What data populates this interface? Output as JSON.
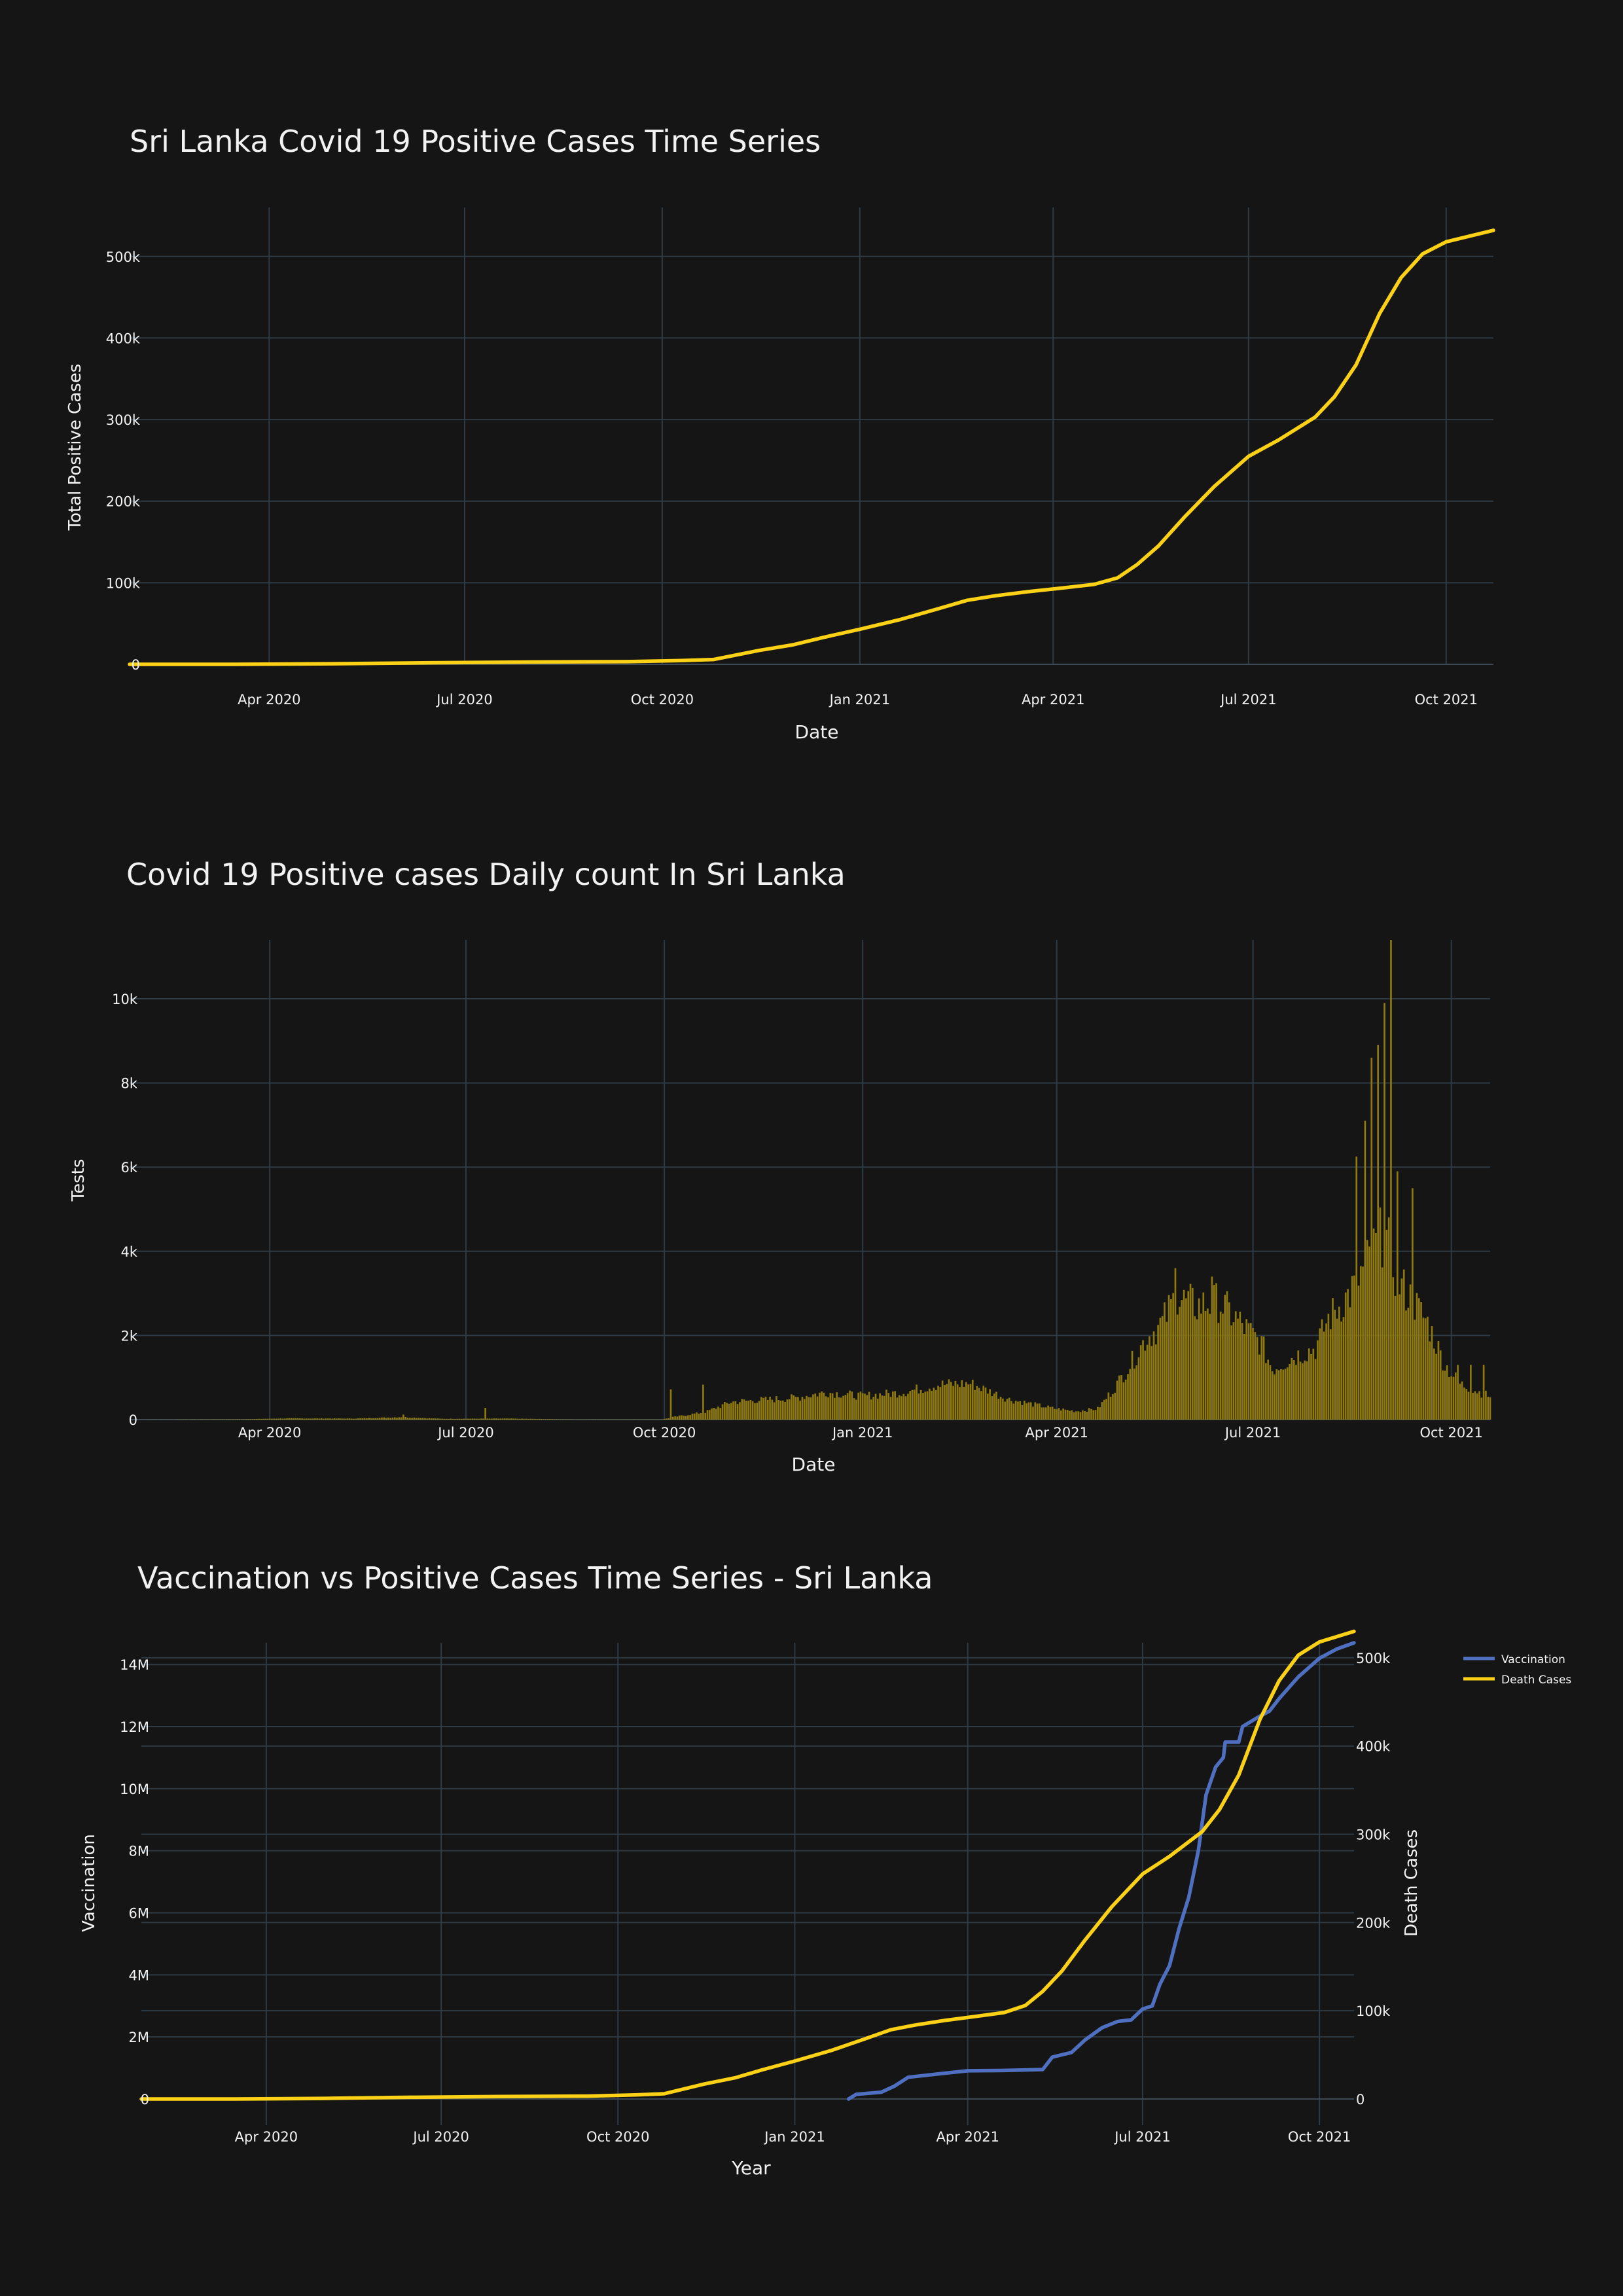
{
  "theme": {
    "background": "#151515",
    "grid": "#2e3a44",
    "text": "#f2f2f2",
    "cases_color": "#fcd116",
    "bar_color": "#8f7a0b",
    "vaccination_color": "#4f6fc0"
  },
  "chart_data": [
    {
      "type": "line",
      "title": "Sri Lanka Covid 19 Positive Cases Time Series",
      "xlabel": "Date",
      "ylabel": "Total Positive Cases",
      "x_range": [
        "2020-01-27",
        "2021-10-23"
      ],
      "ylim": [
        -12000,
        560000
      ],
      "x_ticks": [
        {
          "date": "2020-04-01",
          "label": "Apr 2020"
        },
        {
          "date": "2020-07-01",
          "label": "Jul 2020"
        },
        {
          "date": "2020-10-01",
          "label": "Oct 2020"
        },
        {
          "date": "2021-01-01",
          "label": "Jan 2021"
        },
        {
          "date": "2021-04-01",
          "label": "Apr 2021"
        },
        {
          "date": "2021-07-01",
          "label": "Jul 2021"
        },
        {
          "date": "2021-10-01",
          "label": "Oct 2021"
        }
      ],
      "y_ticks": [
        {
          "value": 0,
          "label": "0"
        },
        {
          "value": 100000,
          "label": "100k"
        },
        {
          "value": 200000,
          "label": "200k"
        },
        {
          "value": 300000,
          "label": "300k"
        },
        {
          "value": 400000,
          "label": "400k"
        },
        {
          "value": 500000,
          "label": "500k"
        }
      ],
      "grid": true,
      "series": [
        {
          "color": "#fcd116",
          "points": [
            [
              "2020-01-27",
              1
            ],
            [
              "2020-03-15",
              20
            ],
            [
              "2020-05-01",
              700
            ],
            [
              "2020-06-15",
              1900
            ],
            [
              "2020-08-01",
              2800
            ],
            [
              "2020-09-15",
              3300
            ],
            [
              "2020-10-10",
              4600
            ],
            [
              "2020-10-25",
              5900
            ],
            [
              "2020-11-15",
              17000
            ],
            [
              "2020-12-01",
              24000
            ],
            [
              "2020-12-15",
              33000
            ],
            [
              "2021-01-01",
              43000
            ],
            [
              "2021-01-20",
              55000
            ],
            [
              "2021-02-05",
              67000
            ],
            [
              "2021-02-20",
              78500
            ],
            [
              "2021-03-05",
              84000
            ],
            [
              "2021-03-20",
              89000
            ],
            [
              "2021-04-05",
              93500
            ],
            [
              "2021-04-20",
              98000
            ],
            [
              "2021-05-01",
              106000
            ],
            [
              "2021-05-10",
              122000
            ],
            [
              "2021-05-20",
              145000
            ],
            [
              "2021-06-01",
              180000
            ],
            [
              "2021-06-15",
              218000
            ],
            [
              "2021-07-01",
              255000
            ],
            [
              "2021-07-15",
              275000
            ],
            [
              "2021-08-01",
              303000
            ],
            [
              "2021-08-10",
              328000
            ],
            [
              "2021-08-20",
              367000
            ],
            [
              "2021-08-31",
              430000
            ],
            [
              "2021-09-10",
              474000
            ],
            [
              "2021-09-20",
              503000
            ],
            [
              "2021-10-01",
              518000
            ],
            [
              "2021-10-23",
              532000
            ]
          ]
        }
      ]
    },
    {
      "type": "bar",
      "title": "Covid 19 Positive cases Daily count In Sri Lanka",
      "xlabel": "Date",
      "ylabel": "Tests",
      "x_range": [
        "2020-01-27",
        "2021-10-19"
      ],
      "ylim": [
        0,
        11400
      ],
      "x_ticks": [
        {
          "date": "2020-04-01",
          "label": "Apr 2020"
        },
        {
          "date": "2020-07-01",
          "label": "Jul 2020"
        },
        {
          "date": "2020-10-01",
          "label": "Oct 2020"
        },
        {
          "date": "2021-01-01",
          "label": "Jan 2021"
        },
        {
          "date": "2021-04-01",
          "label": "Apr 2021"
        },
        {
          "date": "2021-07-01",
          "label": "Jul 2021"
        },
        {
          "date": "2021-10-01",
          "label": "Oct 2021"
        }
      ],
      "y_ticks": [
        {
          "value": 0,
          "label": "0"
        },
        {
          "value": 2000,
          "label": "2k"
        },
        {
          "value": 4000,
          "label": "4k"
        },
        {
          "value": 6000,
          "label": "6k"
        },
        {
          "value": 8000,
          "label": "8k"
        },
        {
          "value": 10000,
          "label": "10k"
        }
      ],
      "grid": true,
      "color": "#8f7a0b",
      "daily_profile": [
        [
          "2020-01-27",
          0
        ],
        [
          "2020-03-20",
          10
        ],
        [
          "2020-04-10",
          30
        ],
        [
          "2020-05-10",
          25
        ],
        [
          "2020-06-01",
          60
        ],
        [
          "2020-06-20",
          20
        ],
        [
          "2020-07-20",
          25
        ],
        [
          "2020-08-20",
          5
        ],
        [
          "2020-09-30",
          5
        ],
        [
          "2020-10-05",
          60
        ],
        [
          "2020-10-20",
          180
        ],
        [
          "2020-11-01",
          420
        ],
        [
          "2020-12-01",
          520
        ],
        [
          "2020-12-15",
          650
        ],
        [
          "2021-01-01",
          560
        ],
        [
          "2021-01-20",
          650
        ],
        [
          "2021-02-05",
          830
        ],
        [
          "2021-02-20",
          860
        ],
        [
          "2021-03-10",
          480
        ],
        [
          "2021-03-30",
          270
        ],
        [
          "2021-04-10",
          200
        ],
        [
          "2021-04-20",
          260
        ],
        [
          "2021-04-27",
          700
        ],
        [
          "2021-05-05",
          1300
        ],
        [
          "2021-05-12",
          1900
        ],
        [
          "2021-05-20",
          2300
        ],
        [
          "2021-05-26",
          2900
        ],
        [
          "2021-06-05",
          2700
        ],
        [
          "2021-06-15",
          2800
        ],
        [
          "2021-06-25",
          2300
        ],
        [
          "2021-07-05",
          1800
        ],
        [
          "2021-07-10",
          1200
        ],
        [
          "2021-07-20",
          1500
        ],
        [
          "2021-07-30",
          1700
        ],
        [
          "2021-08-05",
          2400
        ],
        [
          "2021-08-15",
          3000
        ],
        [
          "2021-08-25",
          3900
        ],
        [
          "2021-08-31",
          4500
        ],
        [
          "2021-09-06",
          3300
        ],
        [
          "2021-09-12",
          2900
        ],
        [
          "2021-09-20",
          2300
        ],
        [
          "2021-09-28",
          1300
        ],
        [
          "2021-10-05",
          850
        ],
        [
          "2021-10-19",
          550
        ]
      ],
      "spikes": [
        [
          "2020-06-02",
          120
        ],
        [
          "2020-07-10",
          280
        ],
        [
          "2020-10-04",
          720
        ],
        [
          "2020-10-19",
          830
        ],
        [
          "2021-05-26",
          3600
        ],
        [
          "2021-06-12",
          3400
        ],
        [
          "2021-08-18",
          6250
        ],
        [
          "2021-08-22",
          7100
        ],
        [
          "2021-08-25",
          8600
        ],
        [
          "2021-08-28",
          8900
        ],
        [
          "2021-08-31",
          9900
        ],
        [
          "2021-09-03",
          11400
        ],
        [
          "2021-09-06",
          5900
        ],
        [
          "2021-09-13",
          5500
        ],
        [
          "2021-10-04",
          1300
        ],
        [
          "2021-10-10",
          1300
        ],
        [
          "2021-10-16",
          1300
        ]
      ]
    },
    {
      "type": "line",
      "title": "Vaccination vs Positive Cases Time Series - Sri Lanka",
      "xlabel": "Year",
      "ylabel": "Vaccination",
      "y2label": "Death Cases",
      "x_range": [
        "2020-01-27",
        "2021-10-19"
      ],
      "ylim": [
        -270000,
        14700000
      ],
      "y2lim": [
        -9500,
        517000
      ],
      "x_ticks": [
        {
          "date": "2020-04-01",
          "label": "Apr 2020"
        },
        {
          "date": "2020-07-01",
          "label": "Jul 2020"
        },
        {
          "date": "2020-10-01",
          "label": "Oct 2020"
        },
        {
          "date": "2021-01-01",
          "label": "Jan 2021"
        },
        {
          "date": "2021-04-01",
          "label": "Apr 2021"
        },
        {
          "date": "2021-07-01",
          "label": "Jul 2021"
        },
        {
          "date": "2021-10-01",
          "label": "Oct 2021"
        }
      ],
      "y_ticks": [
        {
          "value": 0,
          "label": "0"
        },
        {
          "value": 2000000,
          "label": "2M"
        },
        {
          "value": 4000000,
          "label": "4M"
        },
        {
          "value": 6000000,
          "label": "6M"
        },
        {
          "value": 8000000,
          "label": "8M"
        },
        {
          "value": 10000000,
          "label": "10M"
        },
        {
          "value": 12000000,
          "label": "12M"
        },
        {
          "value": 14000000,
          "label": "14M"
        }
      ],
      "y2_ticks": [
        {
          "value": 0,
          "label": "0"
        },
        {
          "value": 100000,
          "label": "100k"
        },
        {
          "value": 200000,
          "label": "200k"
        },
        {
          "value": 300000,
          "label": "300k"
        },
        {
          "value": 400000,
          "label": "400k"
        },
        {
          "value": 500000,
          "label": "500k"
        }
      ],
      "grid": true,
      "legend_position": "top-right",
      "series": [
        {
          "name": "Vaccination",
          "axis": "y",
          "color": "#4f6fc0",
          "points": [
            [
              "2021-01-29",
              0
            ],
            [
              "2021-02-02",
              150000
            ],
            [
              "2021-02-15",
              220000
            ],
            [
              "2021-02-22",
              420000
            ],
            [
              "2021-03-01",
              700000
            ],
            [
              "2021-03-20",
              830000
            ],
            [
              "2021-04-01",
              910000
            ],
            [
              "2021-04-20",
              920000
            ],
            [
              "2021-05-10",
              950000
            ],
            [
              "2021-05-15",
              1350000
            ],
            [
              "2021-05-25",
              1500000
            ],
            [
              "2021-06-01",
              1900000
            ],
            [
              "2021-06-10",
              2300000
            ],
            [
              "2021-06-18",
              2500000
            ],
            [
              "2021-06-25",
              2550000
            ],
            [
              "2021-07-01",
              2900000
            ],
            [
              "2021-07-06",
              3000000
            ],
            [
              "2021-07-10",
              3700000
            ],
            [
              "2021-07-15",
              4300000
            ],
            [
              "2021-07-20",
              5500000
            ],
            [
              "2021-07-25",
              6500000
            ],
            [
              "2021-07-30",
              8000000
            ],
            [
              "2021-08-03",
              9800000
            ],
            [
              "2021-08-08",
              10700000
            ],
            [
              "2021-08-12",
              11000000
            ],
            [
              "2021-08-13",
              11500000
            ],
            [
              "2021-08-20",
              11500000
            ],
            [
              "2021-08-22",
              12000000
            ],
            [
              "2021-08-30",
              12300000
            ],
            [
              "2021-09-05",
              12500000
            ],
            [
              "2021-09-10",
              12900000
            ],
            [
              "2021-09-20",
              13600000
            ],
            [
              "2021-10-01",
              14200000
            ],
            [
              "2021-10-10",
              14500000
            ],
            [
              "2021-10-19",
              14700000
            ]
          ]
        },
        {
          "name": "Death Cases",
          "axis": "y2",
          "color": "#fcd116",
          "points": [
            [
              "2020-01-27",
              1
            ],
            [
              "2020-03-15",
              20
            ],
            [
              "2020-05-01",
              700
            ],
            [
              "2020-06-15",
              1900
            ],
            [
              "2020-08-01",
              2800
            ],
            [
              "2020-09-15",
              3300
            ],
            [
              "2020-10-10",
              4600
            ],
            [
              "2020-10-25",
              5900
            ],
            [
              "2020-11-15",
              17000
            ],
            [
              "2020-12-01",
              24000
            ],
            [
              "2020-12-15",
              33000
            ],
            [
              "2021-01-01",
              43000
            ],
            [
              "2021-01-20",
              55000
            ],
            [
              "2021-02-05",
              67000
            ],
            [
              "2021-02-20",
              78500
            ],
            [
              "2021-03-05",
              84000
            ],
            [
              "2021-03-20",
              89000
            ],
            [
              "2021-04-05",
              93500
            ],
            [
              "2021-04-20",
              98000
            ],
            [
              "2021-05-01",
              106000
            ],
            [
              "2021-05-10",
              122000
            ],
            [
              "2021-05-20",
              145000
            ],
            [
              "2021-06-01",
              180000
            ],
            [
              "2021-06-15",
              218000
            ],
            [
              "2021-07-01",
              255000
            ],
            [
              "2021-07-15",
              275000
            ],
            [
              "2021-08-01",
              303000
            ],
            [
              "2021-08-10",
              328000
            ],
            [
              "2021-08-20",
              367000
            ],
            [
              "2021-08-31",
              430000
            ],
            [
              "2021-09-10",
              474000
            ],
            [
              "2021-09-20",
              503000
            ],
            [
              "2021-10-01",
              518000
            ],
            [
              "2021-10-19",
              530000
            ]
          ]
        }
      ]
    }
  ]
}
